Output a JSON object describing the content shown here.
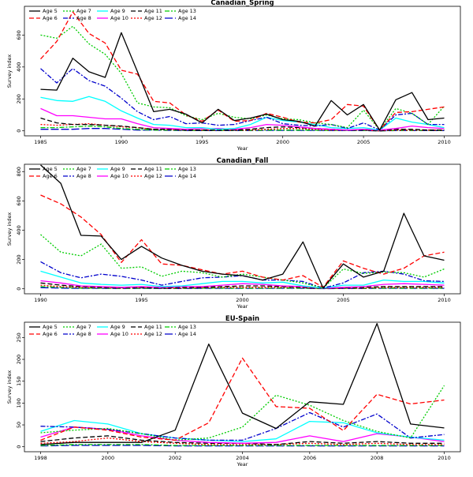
{
  "legend_labels": [
    "Age 5",
    "Age 6",
    "Age 7",
    "Age 8",
    "Age 9",
    "Age 10",
    "Age 11",
    "Age 12",
    "Age 13",
    "Age 14"
  ],
  "series_styles": [
    {
      "color": "#000000",
      "dash": ""
    },
    {
      "color": "#ff0000",
      "dash": "6,3"
    },
    {
      "color": "#00cc00",
      "dash": "2,2"
    },
    {
      "color": "#0000cc",
      "dash": "6,2,2,2"
    },
    {
      "color": "#00ffff",
      "dash": ""
    },
    {
      "color": "#ff00ff",
      "dash": ""
    },
    {
      "color": "#000000",
      "dash": "6,3"
    },
    {
      "color": "#ff0000",
      "dash": "2,2"
    },
    {
      "color": "#00cc00",
      "dash": "6,2,2,2"
    },
    {
      "color": "#0000cc",
      "dash": "10,3"
    }
  ],
  "chart_data": [
    {
      "type": "line",
      "title": "Canadian_Spring",
      "xlabel": "Year",
      "ylabel": "Survey index",
      "xlim": [
        1985,
        2010
      ],
      "ylim": [
        0,
        780
      ],
      "xticks": [
        1985,
        1990,
        1995,
        2000,
        2005,
        2010
      ],
      "yticks": [
        0,
        200,
        400,
        600
      ],
      "x": [
        1985,
        1986,
        1987,
        1988,
        1989,
        1990,
        1991,
        1992,
        1993,
        1994,
        1995,
        1996,
        1997,
        1998,
        1999,
        2000,
        2001,
        2002,
        2003,
        2004,
        2005,
        2006,
        2007,
        2008,
        2009,
        2010
      ],
      "series": [
        {
          "name": "Age 5",
          "values": [
            260,
            255,
            455,
            370,
            335,
            615,
            370,
            120,
            135,
            105,
            50,
            135,
            65,
            80,
            105,
            70,
            60,
            30,
            190,
            100,
            165,
            5,
            195,
            240,
            70,
            80
          ]
        },
        {
          "name": "Age 6",
          "values": [
            450,
            560,
            745,
            610,
            550,
            380,
            355,
            185,
            175,
            100,
            60,
            130,
            60,
            65,
            110,
            85,
            55,
            50,
            70,
            165,
            155,
            5,
            115,
            120,
            135,
            150
          ]
        },
        {
          "name": "Age 7",
          "values": [
            600,
            580,
            655,
            545,
            480,
            360,
            175,
            150,
            145,
            95,
            70,
            110,
            85,
            75,
            100,
            75,
            70,
            50,
            40,
            20,
            130,
            5,
            140,
            110,
            40,
            155
          ]
        },
        {
          "name": "Age 8",
          "values": [
            390,
            300,
            390,
            315,
            280,
            205,
            120,
            70,
            90,
            45,
            50,
            35,
            40,
            65,
            85,
            45,
            35,
            30,
            40,
            15,
            50,
            5,
            100,
            110,
            40,
            40
          ]
        },
        {
          "name": "Age 9",
          "values": [
            210,
            190,
            185,
            215,
            185,
            125,
            80,
            40,
            35,
            20,
            20,
            10,
            15,
            40,
            85,
            65,
            55,
            40,
            20,
            15,
            20,
            5,
            80,
            55,
            40,
            20
          ]
        },
        {
          "name": "Age 10",
          "values": [
            140,
            95,
            95,
            85,
            75,
            75,
            45,
            20,
            15,
            10,
            15,
            15,
            10,
            20,
            40,
            35,
            25,
            15,
            10,
            5,
            10,
            5,
            15,
            30,
            20,
            15
          ]
        },
        {
          "name": "Age 11",
          "values": [
            80,
            50,
            40,
            40,
            35,
            30,
            20,
            10,
            10,
            5,
            5,
            5,
            5,
            10,
            20,
            25,
            20,
            15,
            10,
            5,
            5,
            0,
            10,
            10,
            5,
            5
          ]
        },
        {
          "name": "Age 12",
          "values": [
            40,
            35,
            40,
            45,
            35,
            25,
            20,
            10,
            8,
            5,
            5,
            5,
            5,
            5,
            10,
            15,
            15,
            10,
            5,
            5,
            5,
            0,
            5,
            5,
            5,
            5
          ]
        },
        {
          "name": "Age 13",
          "values": [
            20,
            20,
            25,
            30,
            25,
            15,
            10,
            5,
            5,
            3,
            3,
            3,
            3,
            3,
            5,
            5,
            5,
            5,
            3,
            3,
            3,
            0,
            3,
            3,
            3,
            3
          ]
        },
        {
          "name": "Age 14",
          "values": [
            10,
            10,
            10,
            15,
            15,
            10,
            5,
            5,
            3,
            2,
            2,
            2,
            2,
            2,
            3,
            3,
            3,
            3,
            2,
            2,
            2,
            0,
            2,
            2,
            2,
            2
          ]
        }
      ]
    },
    {
      "type": "line",
      "title": "Canadian_Fall",
      "xlabel": "Year",
      "ylabel": "Survey index",
      "xlim": [
        1990,
        2010
      ],
      "ylim": [
        0,
        850
      ],
      "xticks": [
        1990,
        1995,
        2000,
        2005,
        2010
      ],
      "yticks": [
        0,
        200,
        400,
        600,
        800
      ],
      "x": [
        1990,
        1991,
        1992,
        1993,
        1994,
        1995,
        1996,
        1997,
        1998,
        1999,
        2000,
        2001,
        2002,
        2003,
        2004,
        2005,
        2006,
        2007,
        2008,
        2009,
        2010
      ],
      "series": [
        {
          "name": "Age 5",
          "values": [
            845,
            720,
            365,
            360,
            200,
            290,
            210,
            160,
            120,
            100,
            90,
            60,
            100,
            320,
            5,
            170,
            80,
            120,
            515,
            225,
            195
          ]
        },
        {
          "name": "Age 6",
          "values": [
            640,
            580,
            490,
            370,
            180,
            335,
            170,
            160,
            130,
            100,
            120,
            80,
            60,
            90,
            10,
            190,
            140,
            100,
            140,
            225,
            250
          ]
        },
        {
          "name": "Age 7",
          "values": [
            370,
            250,
            225,
            305,
            140,
            150,
            85,
            120,
            110,
            80,
            100,
            80,
            60,
            40,
            5,
            135,
            105,
            115,
            110,
            80,
            135
          ]
        },
        {
          "name": "Age 8",
          "values": [
            185,
            110,
            75,
            100,
            85,
            60,
            25,
            50,
            75,
            80,
            90,
            60,
            60,
            50,
            5,
            40,
            110,
            120,
            100,
            55,
            50
          ]
        },
        {
          "name": "Age 9",
          "values": [
            120,
            80,
            40,
            30,
            25,
            30,
            15,
            20,
            35,
            50,
            50,
            40,
            45,
            20,
            5,
            25,
            25,
            60,
            50,
            50,
            40
          ]
        },
        {
          "name": "Age 10",
          "values": [
            55,
            40,
            20,
            15,
            10,
            15,
            10,
            15,
            15,
            25,
            35,
            30,
            20,
            15,
            5,
            10,
            15,
            30,
            35,
            30,
            25
          ]
        },
        {
          "name": "Age 11",
          "values": [
            40,
            25,
            15,
            10,
            8,
            10,
            5,
            10,
            10,
            15,
            20,
            20,
            15,
            10,
            3,
            8,
            10,
            15,
            15,
            15,
            15
          ]
        },
        {
          "name": "Age 12",
          "values": [
            25,
            15,
            10,
            8,
            5,
            8,
            5,
            5,
            8,
            10,
            10,
            10,
            10,
            8,
            2,
            5,
            5,
            10,
            10,
            10,
            10
          ]
        },
        {
          "name": "Age 13",
          "values": [
            15,
            10,
            5,
            5,
            3,
            5,
            3,
            3,
            5,
            5,
            5,
            5,
            5,
            5,
            2,
            3,
            3,
            5,
            5,
            5,
            5
          ]
        },
        {
          "name": "Age 14",
          "values": [
            8,
            5,
            3,
            3,
            2,
            3,
            2,
            2,
            3,
            3,
            3,
            3,
            3,
            3,
            1,
            2,
            2,
            3,
            3,
            3,
            3
          ]
        }
      ]
    },
    {
      "type": "line",
      "title": "EU-Spain",
      "xlabel": "Year",
      "ylabel": "Survey index",
      "xlim": [
        1998,
        2010
      ],
      "ylim": [
        0,
        285
      ],
      "xticks": [
        1998,
        2000,
        2002,
        2004,
        2006,
        2008,
        2010
      ],
      "yticks": [
        0,
        50,
        100,
        150,
        200,
        250
      ],
      "x": [
        1998,
        1999,
        2000,
        2001,
        2002,
        2003,
        2004,
        2005,
        2006,
        2007,
        2008,
        2009,
        2010
      ],
      "series": [
        {
          "name": "Age 5",
          "values": [
            5,
            10,
            10,
            10,
            38,
            235,
            77,
            42,
            103,
            97,
            282,
            52,
            43
          ]
        },
        {
          "name": "Age 6",
          "values": [
            15,
            45,
            38,
            22,
            15,
            55,
            203,
            92,
            88,
            37,
            120,
            98,
            107
          ]
        },
        {
          "name": "Age 7",
          "values": [
            32,
            38,
            42,
            30,
            15,
            20,
            45,
            118,
            95,
            60,
            35,
            20,
            140
          ]
        },
        {
          "name": "Age 8",
          "values": [
            47,
            45,
            40,
            30,
            20,
            15,
            15,
            42,
            78,
            45,
            75,
            20,
            28
          ]
        },
        {
          "name": "Age 9",
          "values": [
            35,
            60,
            52,
            30,
            20,
            15,
            12,
            18,
            58,
            55,
            32,
            22,
            15
          ]
        },
        {
          "name": "Age 10",
          "values": [
            22,
            45,
            40,
            25,
            15,
            10,
            8,
            10,
            25,
            12,
            30,
            22,
            12
          ]
        },
        {
          "name": "Age 11",
          "values": [
            12,
            20,
            25,
            15,
            10,
            8,
            8,
            5,
            12,
            8,
            12,
            8,
            8
          ]
        },
        {
          "name": "Age 12",
          "values": [
            8,
            12,
            20,
            12,
            8,
            5,
            5,
            5,
            8,
            5,
            8,
            5,
            5
          ]
        },
        {
          "name": "Age 13",
          "values": [
            3,
            5,
            5,
            5,
            3,
            3,
            3,
            3,
            3,
            3,
            3,
            3,
            3
          ]
        },
        {
          "name": "Age 14",
          "values": [
            2,
            3,
            3,
            3,
            2,
            2,
            2,
            2,
            2,
            2,
            2,
            2,
            2
          ]
        }
      ]
    }
  ]
}
